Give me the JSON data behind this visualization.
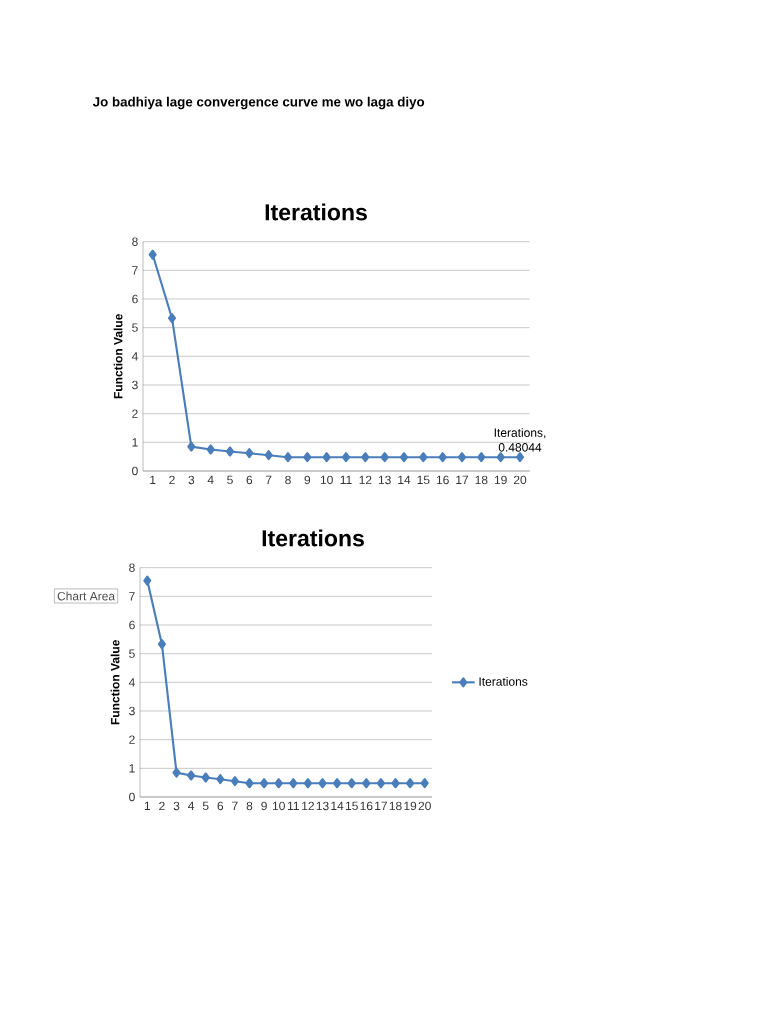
{
  "chart_data": [
    {
      "type": "line",
      "title": "Iterations",
      "ylabel": "Function Value",
      "categories": [
        "1",
        "2",
        "3",
        "4",
        "5",
        "6",
        "7",
        "8",
        "9",
        "10",
        "11",
        "12",
        "13",
        "14",
        "15",
        "16",
        "17",
        "18",
        "19",
        "20"
      ],
      "values": [
        7.55,
        5.33,
        0.85,
        0.75,
        0.68,
        0.62,
        0.55,
        0.48,
        0.48,
        0.48,
        0.48,
        0.48,
        0.48,
        0.48,
        0.48,
        0.48,
        0.48,
        0.48,
        0.48,
        0.48044
      ],
      "color": "#4a7ebb",
      "marker": "diamond",
      "ylim": [
        0,
        8
      ],
      "yticks": [
        0,
        1,
        2,
        3,
        4,
        5,
        6,
        7,
        8
      ],
      "grid": "y",
      "annotations": [
        "Jo badhiya lage convergence curve me wo laga diyo",
        {
          "text": "Iterations, 0.48044",
          "x": "20",
          "y": 0.48044
        }
      ]
    },
    {
      "type": "line",
      "title": "Iterations",
      "ylabel": "Function Value",
      "categories": [
        "1",
        "2",
        "3",
        "4",
        "5",
        "6",
        "7",
        "8",
        "9",
        "10",
        "11",
        "12",
        "13",
        "14",
        "15",
        "16",
        "17",
        "18",
        "19",
        "20"
      ],
      "series": [
        {
          "name": "Iterations",
          "color": "#4a7ebb",
          "values": [
            7.55,
            5.33,
            0.85,
            0.75,
            0.68,
            0.62,
            0.55,
            0.48,
            0.48,
            0.48,
            0.48,
            0.48,
            0.48,
            0.48,
            0.48,
            0.48,
            0.48,
            0.48,
            0.48,
            0.48044
          ]
        }
      ],
      "marker": "diamond",
      "ylim": [
        0,
        8
      ],
      "yticks": [
        0,
        1,
        2,
        3,
        4,
        5,
        6,
        7,
        8
      ],
      "grid": "y",
      "legend": "right",
      "annotations": [
        "Chart Area"
      ]
    }
  ]
}
